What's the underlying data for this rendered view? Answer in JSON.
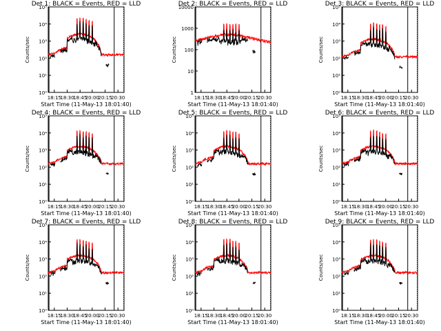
{
  "chart_data": [
    {
      "type": "line",
      "title": "Det 1: BLACK = Events, RED = LLD",
      "xlabel": "Start Time (11-May-13 18:01:40)",
      "ylabel": "Counts/sec",
      "yscale": "log",
      "ylim": [
        1,
        100000
      ],
      "ytick_labels": [
        "10⁰",
        "10¹",
        "10²",
        "10³",
        "10⁴",
        "10⁵"
      ],
      "xtick_labels": [
        "18:15",
        "18:30",
        "18:45",
        "20:00",
        "20:15",
        "20:30"
      ],
      "series": [
        {
          "name": "BLACK = Events",
          "color": "#000000",
          "values": []
        },
        {
          "name": "RED = LLD",
          "color": "#ff0000",
          "values": []
        }
      ]
    },
    {
      "type": "line",
      "title": "Det 2: BLACK = Events, RED = LLD",
      "xlabel": "Start Time (11-May-13 18:01:40)",
      "ylabel": "Counts/sec",
      "yscale": "log",
      "ylim": [
        1,
        10000
      ],
      "ytick_labels": [
        "1",
        "10",
        "100",
        "1000",
        "10000"
      ],
      "xtick_labels": [
        "18:15",
        "18:30",
        "18:45",
        "20:00",
        "20:15",
        "20:30"
      ],
      "series": [
        {
          "name": "BLACK = Events",
          "color": "#000000",
          "values": []
        },
        {
          "name": "RED = LLD",
          "color": "#ff0000",
          "values": []
        }
      ]
    },
    {
      "type": "line",
      "title": "Det 3: BLACK = Events, RED = LLD",
      "xlabel": "Start Time (11-May-13 18:01:40)",
      "ylabel": "Counts/sec",
      "yscale": "log",
      "ylim": [
        1,
        100000
      ],
      "ytick_labels": [
        "10⁰",
        "10¹",
        "10²",
        "10³",
        "10⁴",
        "10⁵"
      ],
      "xtick_labels": [
        "18:15",
        "18:30",
        "18:45",
        "20:00",
        "20:15",
        "20:30"
      ],
      "series": [
        {
          "name": "BLACK = Events",
          "color": "#000000",
          "values": []
        },
        {
          "name": "RED = LLD",
          "color": "#ff0000",
          "values": []
        }
      ]
    },
    {
      "type": "line",
      "title": "Det 4: BLACK = Events, RED = LLD",
      "xlabel": "Start Time (11-May-13 18:01:40)",
      "ylabel": "Counts/sec",
      "yscale": "log",
      "ylim": [
        1,
        100000
      ],
      "ytick_labels": [
        "10⁰",
        "10¹",
        "10²",
        "10³",
        "10⁴",
        "10⁵"
      ],
      "xtick_labels": [
        "18:15",
        "18:30",
        "18:45",
        "20:00",
        "20:15",
        "20:30"
      ],
      "series": [
        {
          "name": "BLACK = Events",
          "color": "#000000",
          "values": []
        },
        {
          "name": "RED = LLD",
          "color": "#ff0000",
          "values": []
        }
      ]
    },
    {
      "type": "line",
      "title": "Det 5: BLACK = Events, RED = LLD",
      "xlabel": "Start Time (11-May-13 18:01:40)",
      "ylabel": "Counts/sec",
      "yscale": "log",
      "ylim": [
        1,
        100000
      ],
      "ytick_labels": [
        "10⁰",
        "10¹",
        "10²",
        "10³",
        "10⁴",
        "10⁵"
      ],
      "xtick_labels": [
        "18:15",
        "18:30",
        "18:45",
        "20:00",
        "20:15",
        "20:30"
      ],
      "series": [
        {
          "name": "BLACK = Events",
          "color": "#000000",
          "values": []
        },
        {
          "name": "RED = LLD",
          "color": "#ff0000",
          "values": []
        }
      ]
    },
    {
      "type": "line",
      "title": "Det 6: BLACK = Events, RED = LLD",
      "xlabel": "Start Time (11-May-13 18:01:40)",
      "ylabel": "Counts/sec",
      "yscale": "log",
      "ylim": [
        1,
        100000
      ],
      "ytick_labels": [
        "10⁰",
        "10¹",
        "10²",
        "10³",
        "10⁴",
        "10⁵"
      ],
      "xtick_labels": [
        "18:15",
        "18:30",
        "18:45",
        "20:00",
        "20:15",
        "20:30"
      ],
      "series": [
        {
          "name": "BLACK = Events",
          "color": "#000000",
          "values": []
        },
        {
          "name": "RED = LLD",
          "color": "#ff0000",
          "values": []
        }
      ]
    },
    {
      "type": "line",
      "title": "Det 7: BLACK = Events, RED = LLD",
      "xlabel": "Start Time (11-May-13 18:01:40)",
      "ylabel": "Counts/sec",
      "yscale": "log",
      "ylim": [
        1,
        100000
      ],
      "ytick_labels": [
        "10⁰",
        "10¹",
        "10²",
        "10³",
        "10⁴",
        "10⁵"
      ],
      "xtick_labels": [
        "18:15",
        "18:30",
        "18:45",
        "20:00",
        "20:15",
        "20:30"
      ],
      "series": [
        {
          "name": "BLACK = Events",
          "color": "#000000",
          "values": []
        },
        {
          "name": "RED = LLD",
          "color": "#ff0000",
          "values": []
        }
      ]
    },
    {
      "type": "line",
      "title": "Det 8: BLACK = Events, RED = LLD",
      "xlabel": "Start Time (11-May-13 18:01:40)",
      "ylabel": "Counts/sec",
      "yscale": "log",
      "ylim": [
        1,
        100000
      ],
      "ytick_labels": [
        "10⁰",
        "10¹",
        "10²",
        "10³",
        "10⁴",
        "10⁵"
      ],
      "xtick_labels": [
        "18:15",
        "18:30",
        "18:45",
        "20:00",
        "20:15",
        "20:30"
      ],
      "series": [
        {
          "name": "BLACK = Events",
          "color": "#000000",
          "values": []
        },
        {
          "name": "RED = LLD",
          "color": "#ff0000",
          "values": []
        }
      ]
    },
    {
      "type": "line",
      "title": "Det 9: BLACK = Events, RED = LLD",
      "xlabel": "Start Time (11-May-13 18:01:40)",
      "ylabel": "Counts/sec",
      "yscale": "log",
      "ylim": [
        1,
        100000
      ],
      "ytick_labels": [
        "10⁰",
        "10¹",
        "10²",
        "10³",
        "10⁴",
        "10⁵"
      ],
      "xtick_labels": [
        "18:15",
        "18:30",
        "18:45",
        "20:00",
        "20:15",
        "20:30"
      ],
      "series": [
        {
          "name": "BLACK = Events",
          "color": "#000000",
          "values": []
        },
        {
          "name": "RED = LLD",
          "color": "#ff0000",
          "values": []
        }
      ]
    }
  ],
  "colors": {
    "background": "#ffffff",
    "axes": "#000000",
    "events": "#000000",
    "lld": "#ff0000"
  }
}
